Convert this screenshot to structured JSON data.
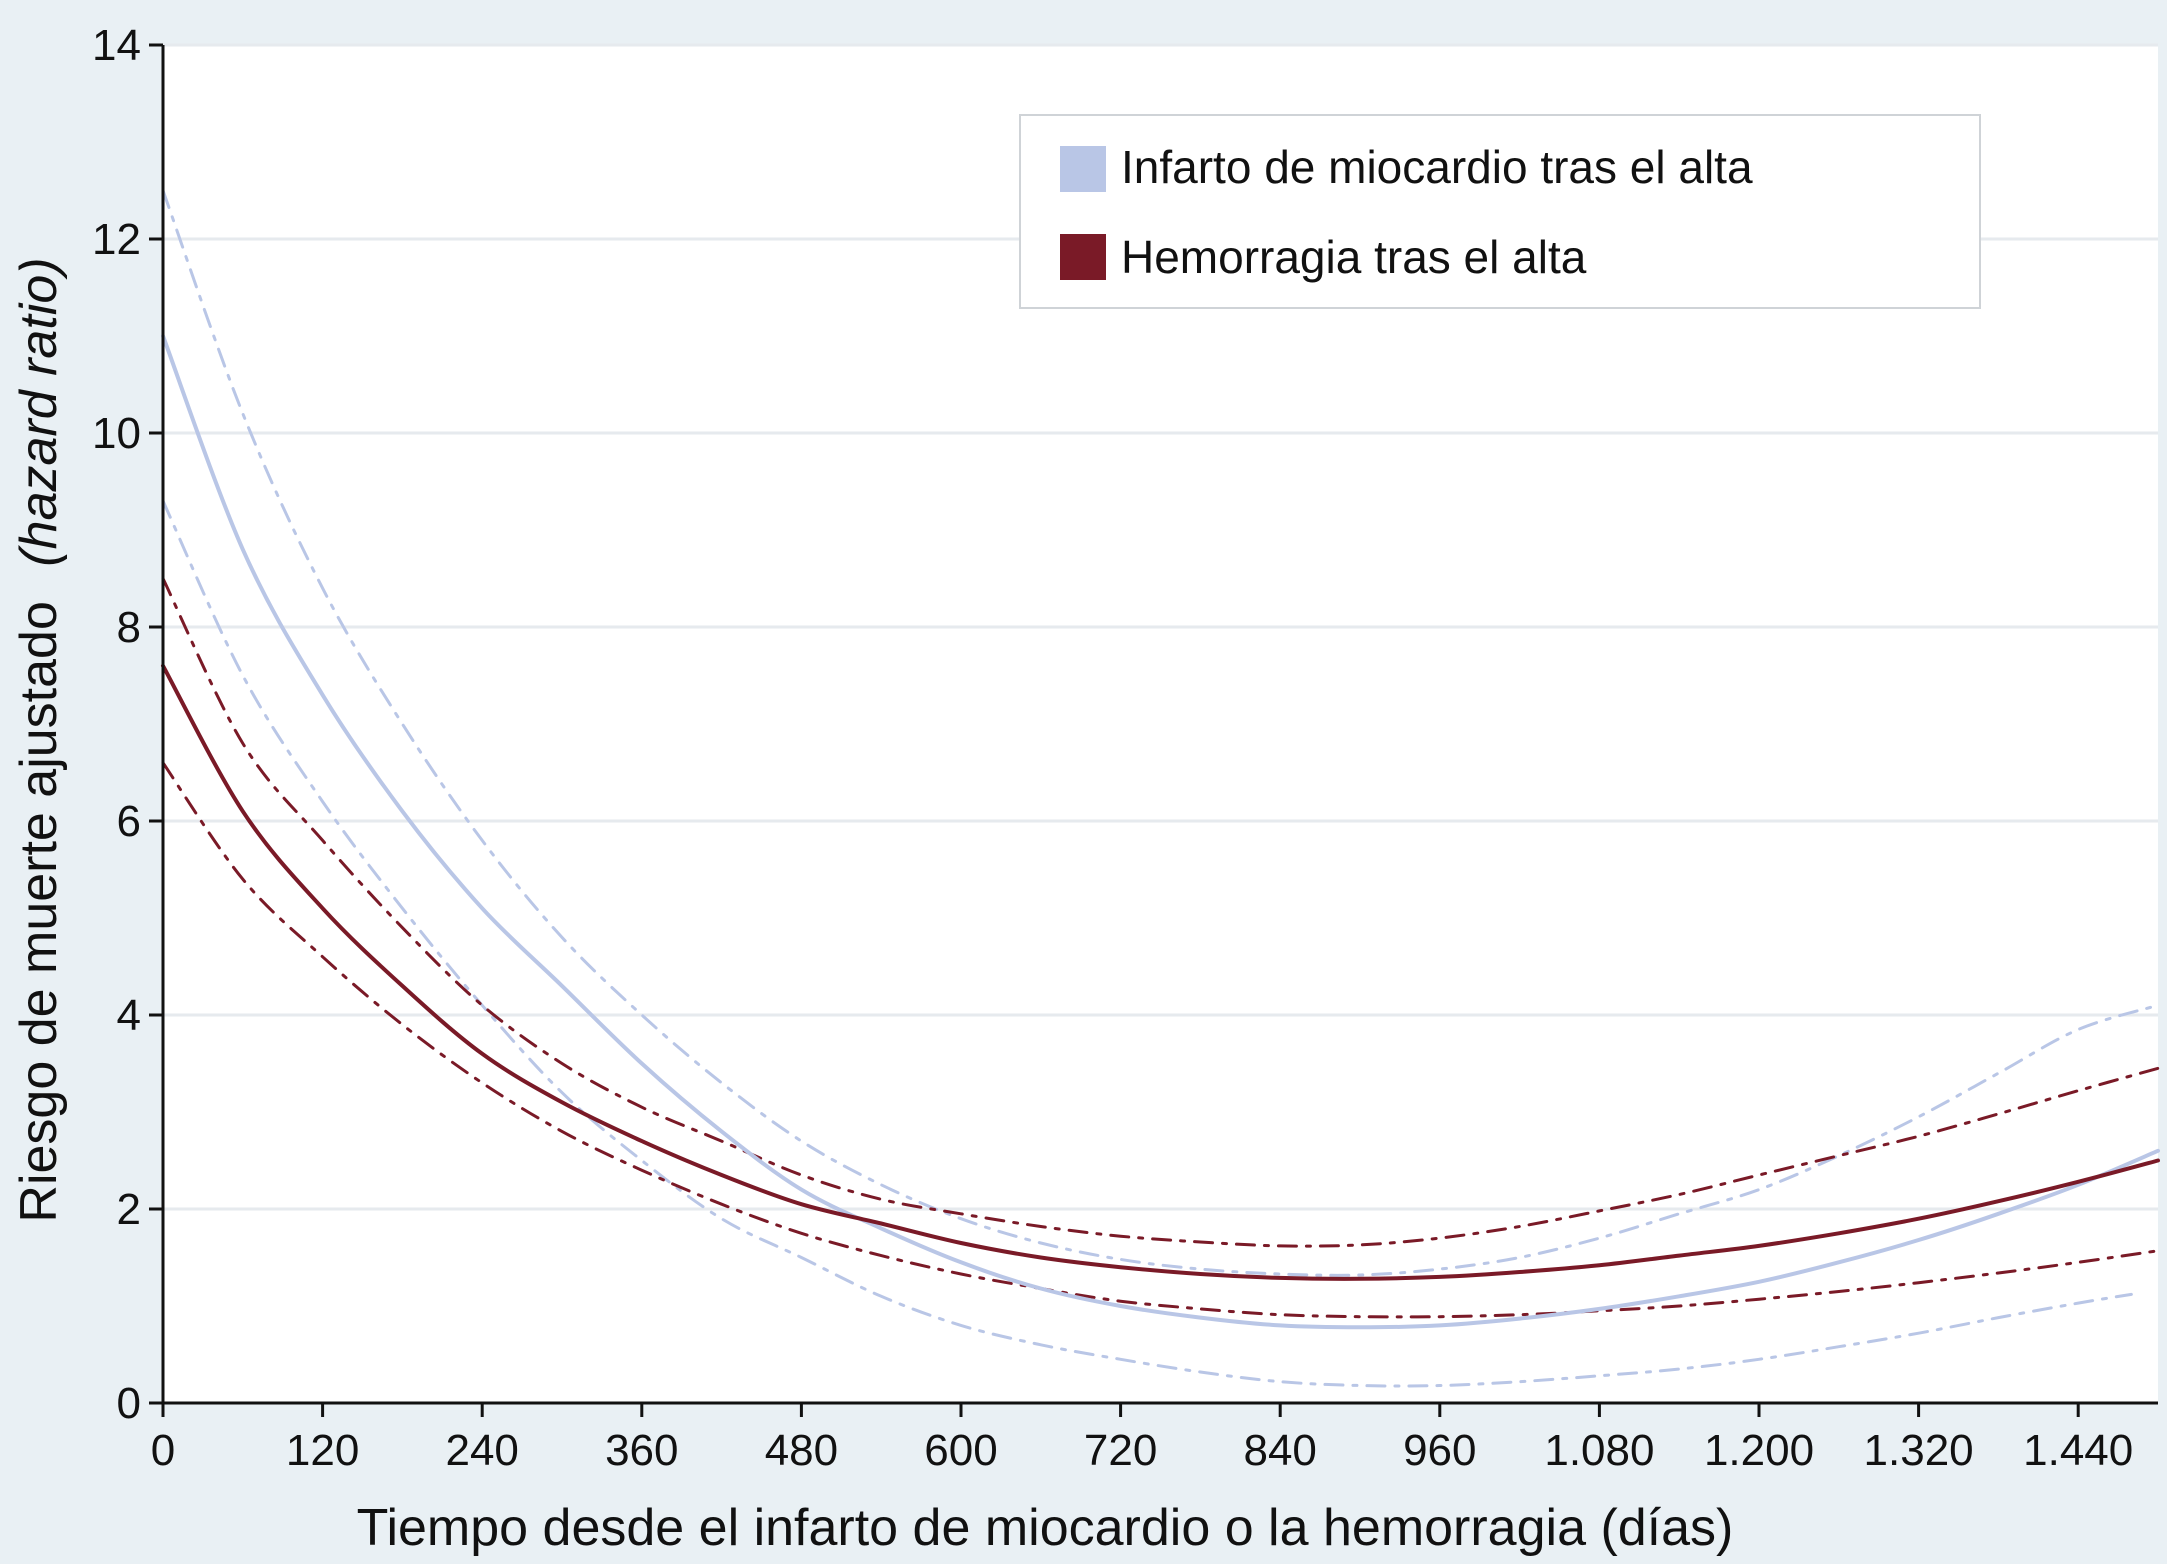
{
  "chart_data": {
    "type": "line",
    "xlabel": "Tiempo desde el infarto de miocardio o la hemorragia (días)",
    "ylabel": "Riesgo de muerte ajustado",
    "ylabel_italic": "(hazard ratio)",
    "xlim": [
      0,
      1500
    ],
    "ylim": [
      0,
      14
    ],
    "x_ticks": [
      0,
      120,
      240,
      360,
      480,
      600,
      720,
      840,
      960,
      1080,
      1200,
      1320,
      1440
    ],
    "x_tick_labels": [
      "0",
      "120",
      "240",
      "360",
      "480",
      "600",
      "720",
      "840",
      "960",
      "1.080",
      "1.200",
      "1.320",
      "1.440"
    ],
    "y_ticks": [
      0,
      2,
      4,
      6,
      8,
      10,
      12,
      14
    ],
    "y_tick_labels": [
      "0",
      "2",
      "4",
      "6",
      "8",
      "10",
      "12",
      "14"
    ],
    "grid": "horizontal",
    "legend_position": "top-right",
    "legend": [
      {
        "label": "Infarto de miocardio tras el alta",
        "color": "#b9c6e6"
      },
      {
        "label": "Hemorragia tras el alta",
        "color": "#7a1a27"
      }
    ],
    "series": [
      {
        "name": "Infarto de miocardio tras el alta",
        "role": "estimate",
        "color": "#b9c6e6",
        "style": "solid",
        "x": [
          0,
          60,
          120,
          180,
          240,
          300,
          360,
          420,
          480,
          540,
          600,
          660,
          720,
          780,
          840,
          900,
          960,
          1020,
          1080,
          1140,
          1200,
          1260,
          1320,
          1380,
          1440,
          1500
        ],
        "y": [
          11.0,
          8.8,
          7.3,
          6.1,
          5.1,
          4.3,
          3.5,
          2.8,
          2.2,
          1.8,
          1.45,
          1.18,
          1.0,
          0.88,
          0.8,
          0.78,
          0.8,
          0.87,
          0.97,
          1.1,
          1.25,
          1.45,
          1.68,
          1.95,
          2.25,
          2.6
        ]
      },
      {
        "name": "Infarto de miocardio tras el alta",
        "role": "upper-ci",
        "color": "#b9c6e6",
        "style": "dashed",
        "x": [
          0,
          60,
          120,
          180,
          240,
          300,
          360,
          420,
          480,
          540,
          600,
          660,
          720,
          780,
          840,
          900,
          960,
          1020,
          1080,
          1140,
          1200,
          1260,
          1320,
          1380,
          1440,
          1500
        ],
        "y": [
          12.5,
          10.2,
          8.4,
          7.0,
          5.8,
          4.8,
          4.0,
          3.3,
          2.7,
          2.25,
          1.9,
          1.65,
          1.48,
          1.38,
          1.33,
          1.32,
          1.38,
          1.5,
          1.7,
          1.95,
          2.2,
          2.55,
          2.95,
          3.4,
          3.85,
          4.1
        ]
      },
      {
        "name": "Infarto de miocardio tras el alta",
        "role": "lower-ci",
        "color": "#b9c6e6",
        "style": "dashed",
        "x": [
          0,
          60,
          120,
          180,
          240,
          300,
          360,
          420,
          480,
          540,
          600,
          660,
          720,
          780,
          840,
          900,
          960,
          1020,
          1080,
          1140,
          1200,
          1260,
          1320,
          1380,
          1440,
          1480
        ],
        "y": [
          9.3,
          7.5,
          6.2,
          5.1,
          4.1,
          3.2,
          2.5,
          1.9,
          1.5,
          1.1,
          0.8,
          0.6,
          0.45,
          0.32,
          0.22,
          0.18,
          0.18,
          0.22,
          0.28,
          0.35,
          0.45,
          0.58,
          0.72,
          0.88,
          1.03,
          1.12
        ]
      },
      {
        "name": "Hemorragia tras el alta",
        "role": "estimate",
        "color": "#7a1a27",
        "style": "solid",
        "x": [
          0,
          60,
          120,
          180,
          240,
          300,
          360,
          420,
          480,
          540,
          600,
          660,
          720,
          780,
          840,
          900,
          960,
          1020,
          1080,
          1140,
          1200,
          1260,
          1320,
          1380,
          1440,
          1500
        ],
        "y": [
          7.6,
          6.1,
          5.1,
          4.3,
          3.6,
          3.1,
          2.7,
          2.35,
          2.05,
          1.85,
          1.65,
          1.5,
          1.4,
          1.33,
          1.29,
          1.28,
          1.3,
          1.35,
          1.42,
          1.52,
          1.62,
          1.75,
          1.9,
          2.08,
          2.28,
          2.5
        ]
      },
      {
        "name": "Hemorragia tras el alta",
        "role": "upper-ci",
        "color": "#7a1a27",
        "style": "dashed",
        "x": [
          0,
          60,
          120,
          180,
          240,
          300,
          360,
          420,
          480,
          540,
          600,
          660,
          720,
          780,
          840,
          900,
          960,
          1020,
          1080,
          1140,
          1200,
          1260,
          1320,
          1380,
          1440,
          1500
        ],
        "y": [
          8.5,
          6.8,
          5.8,
          4.9,
          4.1,
          3.5,
          3.05,
          2.7,
          2.35,
          2.1,
          1.95,
          1.82,
          1.72,
          1.66,
          1.62,
          1.63,
          1.7,
          1.82,
          1.98,
          2.15,
          2.35,
          2.55,
          2.75,
          2.98,
          3.22,
          3.45
        ]
      },
      {
        "name": "Hemorragia tras el alta",
        "role": "lower-ci",
        "color": "#7a1a27",
        "style": "dashed",
        "x": [
          0,
          60,
          120,
          180,
          240,
          300,
          360,
          420,
          480,
          540,
          600,
          660,
          720,
          780,
          840,
          900,
          960,
          1020,
          1080,
          1140,
          1200,
          1260,
          1320,
          1380,
          1440,
          1500
        ],
        "y": [
          6.6,
          5.4,
          4.6,
          3.9,
          3.3,
          2.8,
          2.4,
          2.05,
          1.75,
          1.52,
          1.33,
          1.18,
          1.05,
          0.97,
          0.91,
          0.89,
          0.89,
          0.91,
          0.95,
          1.0,
          1.07,
          1.15,
          1.24,
          1.34,
          1.45,
          1.57
        ]
      }
    ]
  }
}
